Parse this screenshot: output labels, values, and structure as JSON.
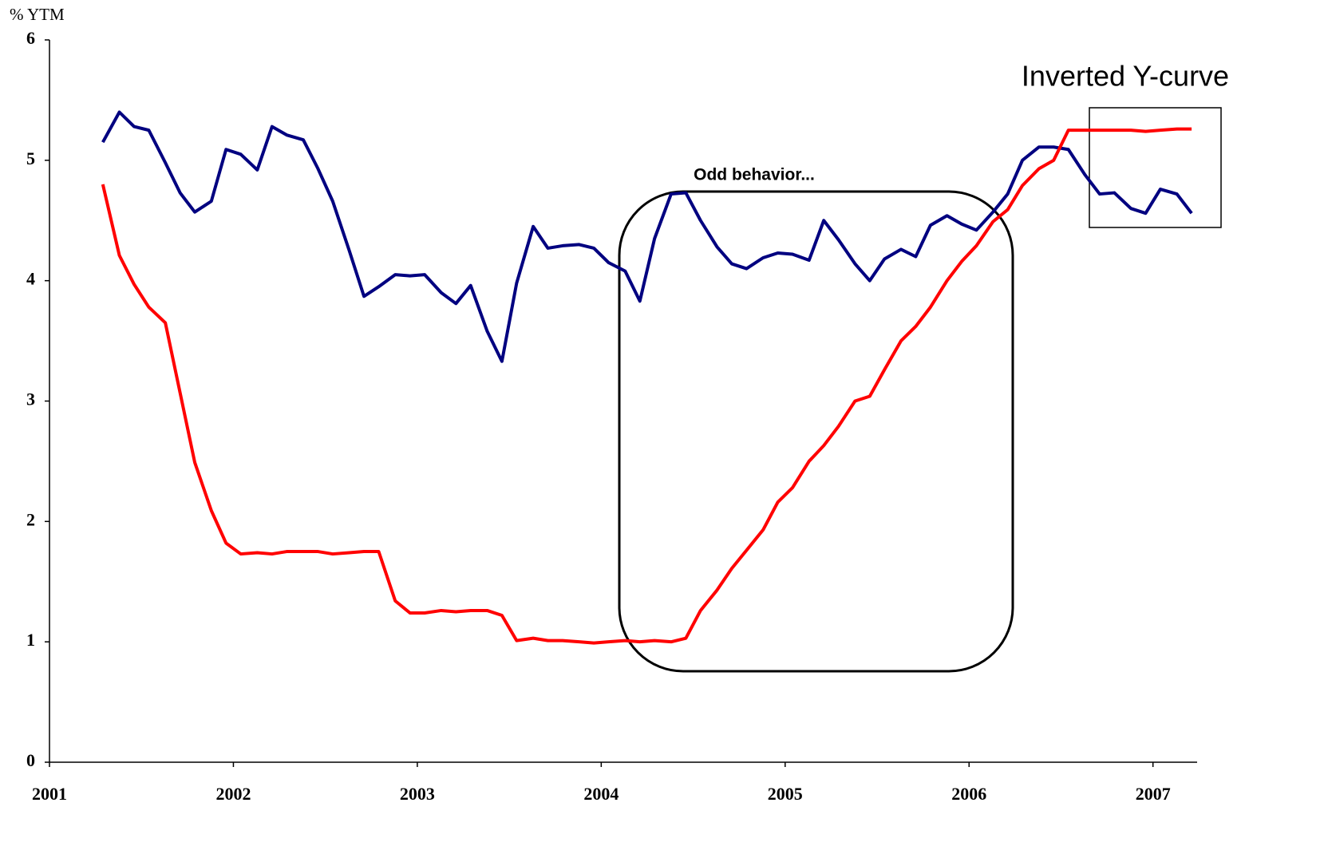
{
  "chart_data": {
    "type": "line",
    "y_label": "% YTM",
    "annotations": [
      "Odd behavior...",
      "Inverted Y-curve"
    ],
    "x": [
      2001.29,
      2001.38,
      2001.46,
      2001.54,
      2001.63,
      2001.71,
      2001.79,
      2001.88,
      2001.96,
      2002.04,
      2002.13,
      2002.21,
      2002.29,
      2002.38,
      2002.46,
      2002.54,
      2002.63,
      2002.71,
      2002.79,
      2002.88,
      2002.96,
      2003.04,
      2003.13,
      2003.21,
      2003.29,
      2003.38,
      2003.46,
      2003.54,
      2003.63,
      2003.71,
      2003.79,
      2003.88,
      2003.96,
      2004.04,
      2004.13,
      2004.21,
      2004.29,
      2004.38,
      2004.46,
      2004.54,
      2004.63,
      2004.71,
      2004.79,
      2004.88,
      2004.96,
      2005.04,
      2005.13,
      2005.21,
      2005.29,
      2005.38,
      2005.46,
      2005.54,
      2005.63,
      2005.71,
      2005.79,
      2005.88,
      2005.96,
      2006.04,
      2006.13,
      2006.21,
      2006.29,
      2006.38,
      2006.46,
      2006.54,
      2006.63,
      2006.71,
      2006.79,
      2006.88,
      2006.96,
      2007.04,
      2007.13,
      2007.21
    ],
    "series": [
      {
        "color": "#000080",
        "values": [
          5.15,
          5.4,
          5.28,
          5.25,
          4.98,
          4.73,
          4.57,
          4.66,
          5.09,
          5.05,
          4.92,
          5.28,
          5.21,
          5.17,
          4.93,
          4.66,
          4.25,
          3.87,
          3.95,
          4.05,
          4.04,
          4.05,
          3.9,
          3.81,
          3.96,
          3.58,
          3.33,
          3.98,
          4.45,
          4.27,
          4.29,
          4.3,
          4.27,
          4.15,
          4.08,
          3.83,
          4.35,
          4.72,
          4.73,
          4.5,
          4.28,
          4.14,
          4.1,
          4.19,
          4.23,
          4.22,
          4.17,
          4.5,
          4.34,
          4.14,
          4.0,
          4.18,
          4.26,
          4.2,
          4.46,
          4.54,
          4.47,
          4.42,
          4.57,
          4.72,
          5.0,
          5.11,
          5.11,
          5.09,
          4.88,
          4.72,
          4.73,
          4.6,
          4.56,
          4.76,
          4.72,
          4.56
        ]
      },
      {
        "color": "#ff0000",
        "values": [
          4.8,
          4.21,
          3.97,
          3.78,
          3.65,
          3.07,
          2.49,
          2.09,
          1.82,
          1.73,
          1.74,
          1.73,
          1.75,
          1.75,
          1.75,
          1.73,
          1.74,
          1.75,
          1.75,
          1.34,
          1.24,
          1.24,
          1.26,
          1.25,
          1.26,
          1.26,
          1.22,
          1.01,
          1.03,
          1.01,
          1.01,
          1.0,
          0.99,
          1.0,
          1.01,
          1.0,
          1.01,
          1.0,
          1.03,
          1.26,
          1.43,
          1.61,
          1.76,
          1.93,
          2.16,
          2.28,
          2.5,
          2.63,
          2.79,
          3.0,
          3.04,
          3.26,
          3.5,
          3.62,
          3.78,
          4.0,
          4.16,
          4.29,
          4.49,
          4.59,
          4.79,
          4.93,
          5.0,
          5.25,
          5.25,
          5.25,
          5.25,
          5.25,
          5.24,
          5.25,
          5.26,
          5.26
        ]
      }
    ],
    "xlim": [
      2001,
      2007.24
    ],
    "xticks": [
      2001,
      2002,
      2003,
      2004,
      2005,
      2006,
      2007
    ],
    "ylim": [
      0,
      6
    ],
    "yticks": [
      0,
      1,
      2,
      3,
      4,
      5,
      6
    ],
    "grid": false
  }
}
